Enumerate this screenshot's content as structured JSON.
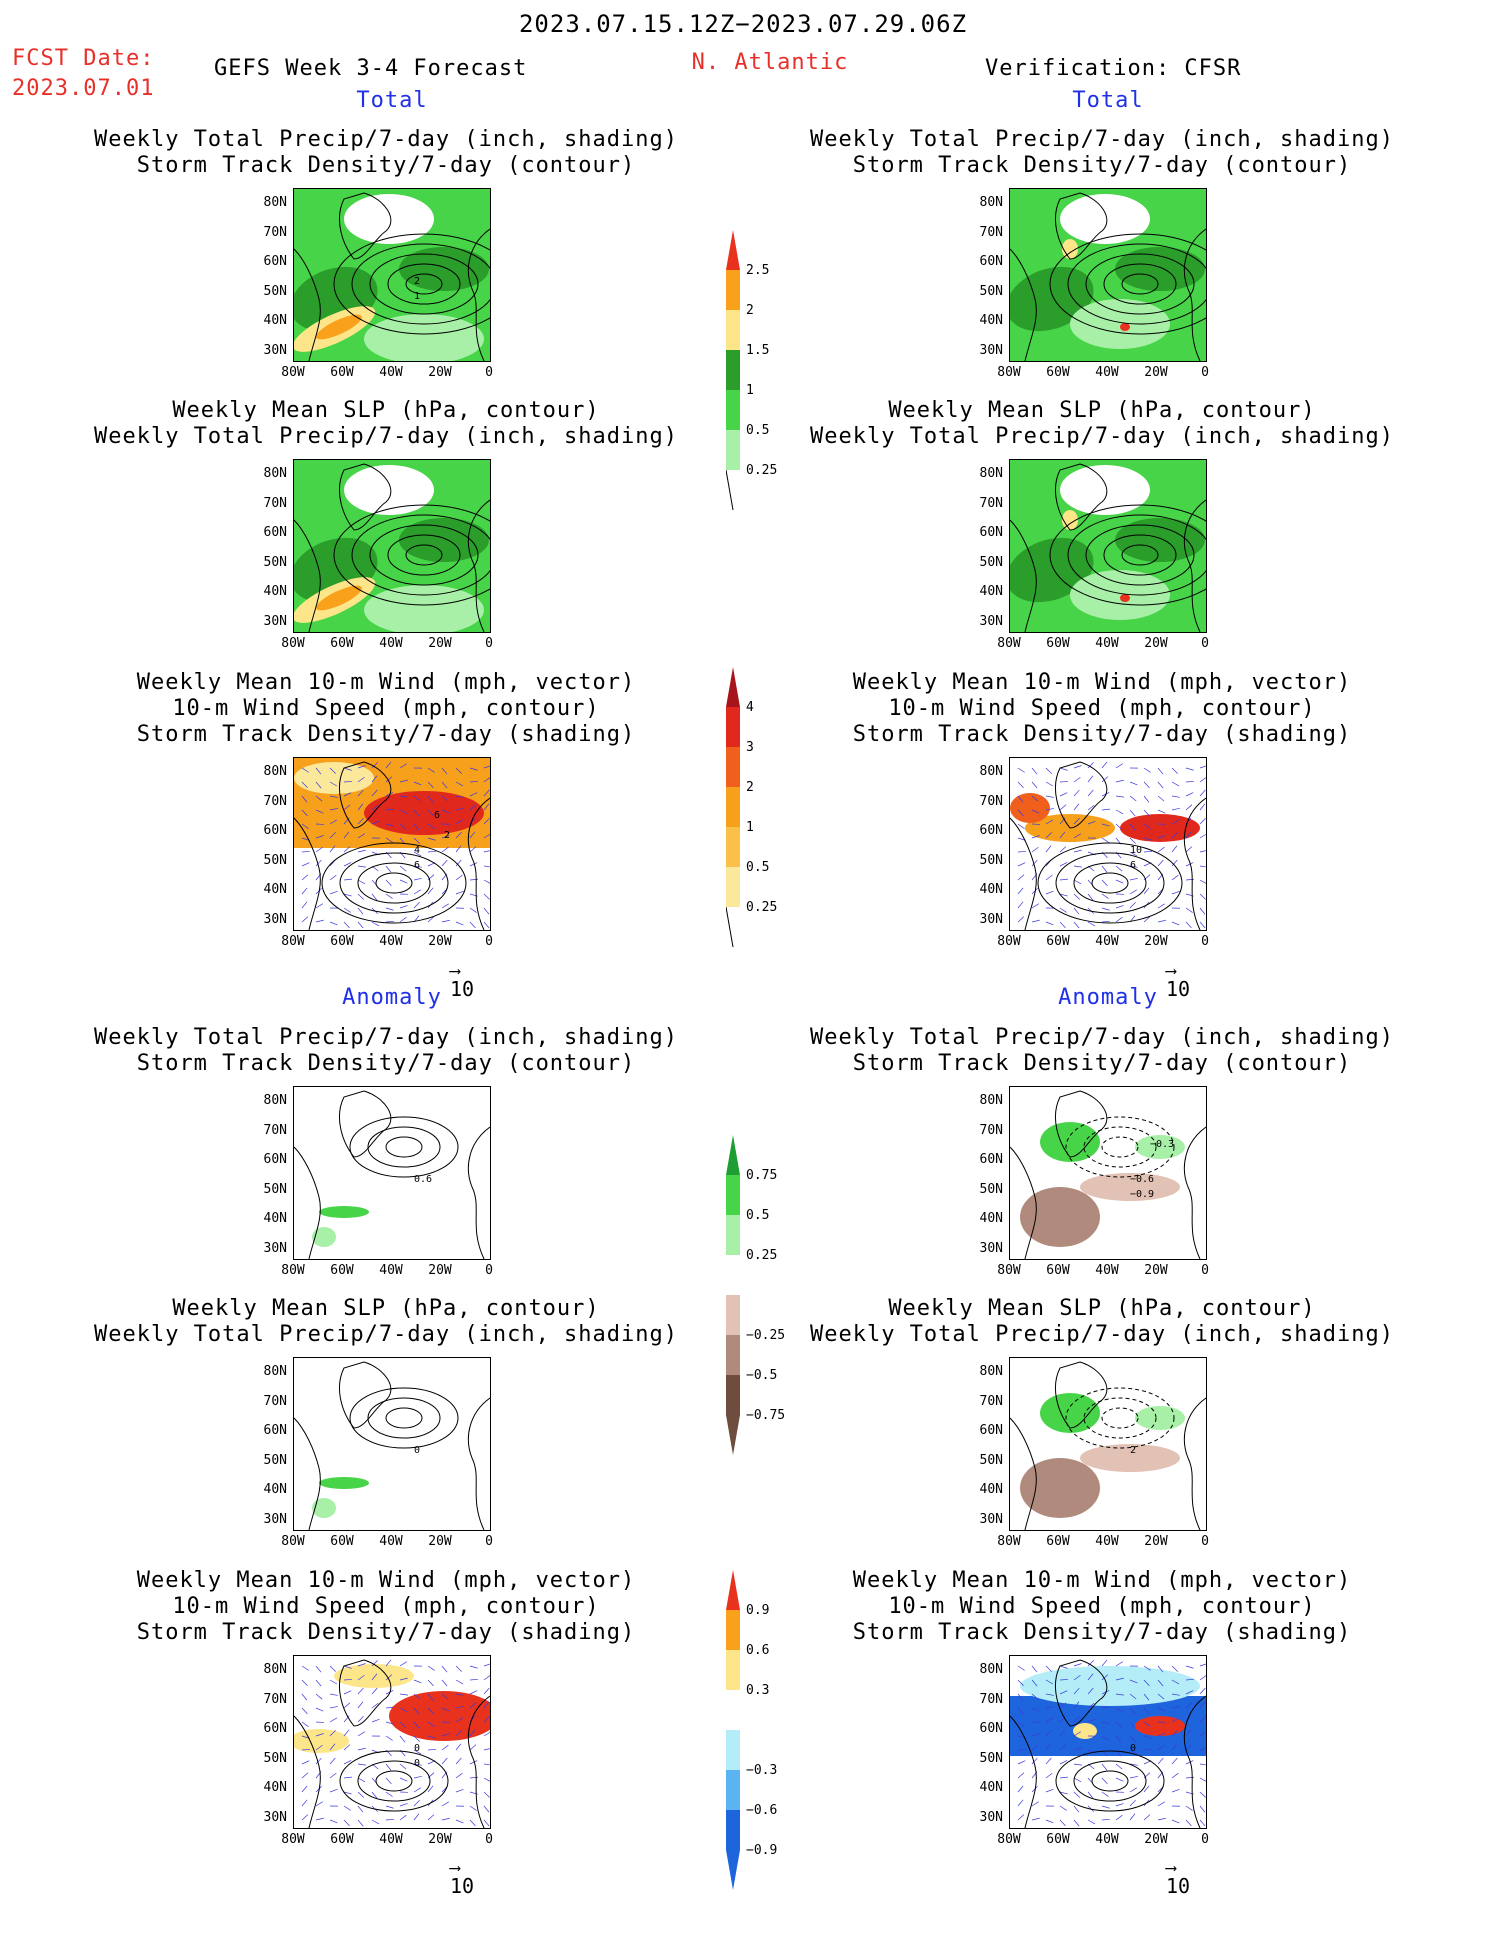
{
  "header": {
    "period": "2023.07.15.12Z−2023.07.29.06Z",
    "fcst_label": "FCST Date:",
    "fcst_date": "2023.07.01",
    "model": "GEFS Week 3-4 Forecast",
    "region": "N. Atlantic",
    "verification": "Verification: CFSR"
  },
  "sections": {
    "total": "Total",
    "anomaly": "Anomaly"
  },
  "titles": {
    "precip_storm": [
      "Weekly Total Precip/7-day (inch, shading)",
      "Storm Track Density/7-day (contour)"
    ],
    "slp_precip": [
      "Weekly Mean SLP (hPa, contour)",
      "Weekly Total Precip/7-day (inch, shading)"
    ],
    "wind_storm": [
      "Weekly Mean 10-m Wind (mph, vector)",
      "10-m Wind Speed (mph, contour)",
      "Storm Track Density/7-day (shading)"
    ]
  },
  "axes": {
    "lat_ticks": [
      "80N",
      "70N",
      "60N",
      "50N",
      "40N",
      "30N"
    ],
    "lon_ticks": [
      "80W",
      "60W",
      "40W",
      "20W",
      "0"
    ]
  },
  "vector_ref": "10",
  "colorbars": {
    "precip_total": {
      "labels": [
        "2.5",
        "2",
        "1.5",
        "1",
        "0.5",
        "0.25"
      ],
      "colors": [
        "#e8321e",
        "#f9a11b",
        "#fde68a",
        "#2a9d2a",
        "#48d448",
        "#a8f0a8"
      ]
    },
    "storm_total": {
      "labels": [
        "4",
        "3",
        "2",
        "1",
        "0.5",
        "0.25"
      ],
      "colors": [
        "#a8141c",
        "#e0281c",
        "#f0601c",
        "#f7a01c",
        "#fac04a",
        "#fce89a"
      ]
    },
    "precip_anom": {
      "labels": [
        "0.75",
        "0.5",
        "0.25",
        "−0.25",
        "−0.5",
        "−0.75"
      ],
      "colors": [
        "#1e9e32",
        "#48d448",
        "#a8f0a8",
        "#ffffff",
        "#e2c2b4",
        "#b08a7c",
        "#6e4c3e"
      ]
    },
    "storm_anom": {
      "labels": [
        "0.9",
        "0.6",
        "0.3",
        "−0.3",
        "−0.6",
        "−0.9"
      ],
      "colors": [
        "#e8321e",
        "#f9a11b",
        "#fde68a",
        "#ffffff",
        "#b4ecf8",
        "#5ab4f0",
        "#1e64dc"
      ]
    }
  },
  "contour_labels": {
    "fcst_total_storm": [
      "2",
      "1"
    ],
    "fcst_total_wind": [
      "4",
      "6",
      "6",
      "2"
    ],
    "obs_total_wind": [
      "10",
      "6"
    ],
    "fcst_anom_storm": [
      "0.6"
    ],
    "obs_anom_storm": [
      "−0.6",
      "−0.9",
      "−0.3"
    ],
    "fcst_anom_slp": [
      "0"
    ],
    "obs_anom_slp": [
      "2"
    ],
    "fcst_anom_wind": [
      "0",
      "0"
    ],
    "obs_anom_wind": [
      "0"
    ]
  }
}
